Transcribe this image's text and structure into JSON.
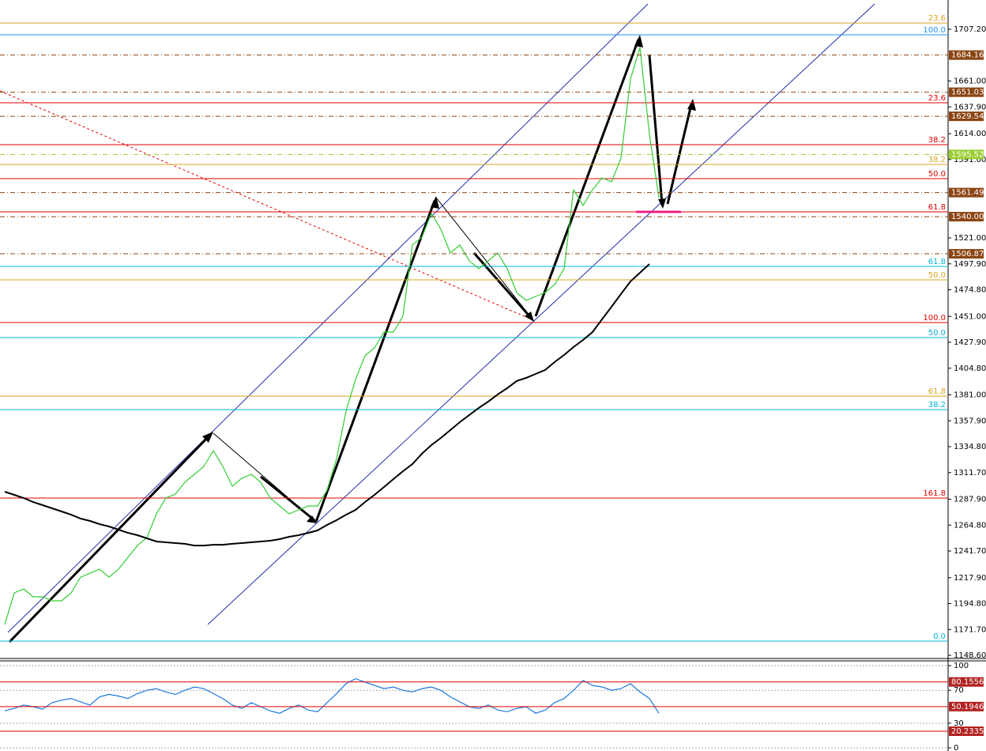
{
  "chart_data": [
    {
      "type": "line",
      "categories": [
        null,
        null,
        null,
        null,
        null,
        null,
        null,
        null,
        null,
        null,
        null,
        null,
        null,
        null,
        null,
        null,
        null,
        null,
        null,
        null,
        null,
        null,
        null,
        null,
        null,
        null,
        null,
        null,
        null,
        null,
        null,
        null,
        null,
        null,
        null,
        null,
        null,
        null,
        null,
        null,
        null,
        null,
        null,
        null,
        null,
        null,
        null,
        null,
        null,
        null,
        null,
        null,
        null,
        null,
        null,
        null,
        null,
        null,
        null,
        null,
        null,
        null,
        null,
        null,
        null,
        null,
        null,
        null,
        null,
        null,
        null,
        null,
        null,
        null,
        null,
        null,
        null,
        null,
        null,
        null,
        null,
        null,
        null,
        null,
        null,
        null,
        null,
        null,
        null,
        null,
        null,
        null,
        null,
        null,
        null,
        null,
        null,
        null,
        null,
        null
      ],
      "series": [
        {
          "color": "#32cd32",
          "values": [
            1176.1,
            1204.3,
            1207.8,
            1200.8,
            1200.8,
            1197.3,
            1197.3,
            1204.3,
            1218.4,
            1221.9,
            1225.5,
            1218.4,
            1225.5,
            1236.1,
            1246.6,
            1253.7,
            1274.9,
            1289.0,
            1292.5,
            1303.1,
            1310.1,
            1317.2,
            1331.3,
            1317.2,
            1299.5,
            1306.6,
            1310.1,
            1303.1,
            1289.0,
            1281.9,
            1274.9,
            1278.4,
            1281.9,
            1281.9,
            1296.0,
            1324.2,
            1366.5,
            1394.8,
            1415.9,
            1423.0,
            1437.1,
            1437.1,
            1451.2,
            1514.7,
            1521.7,
            1542.9,
            1528.8,
            1507.6,
            1514.7,
            1500.6,
            1493.5,
            1500.6,
            1507.6,
            1493.5,
            1472.3,
            1465.3,
            1468.8,
            1472.3,
            1479.4,
            1493.5,
            1564.0,
            1549.9,
            1564.0,
            1574.6,
            1571.1,
            1592.2,
            1662.8,
            1691.0,
            1613.4,
            1557.0,
            null,
            null,
            null,
            null,
            null,
            null,
            null,
            null,
            null,
            null,
            null,
            null,
            null,
            null,
            null,
            null,
            null,
            null,
            null,
            null,
            null,
            null,
            null,
            null,
            null,
            null,
            null,
            null,
            null,
            null
          ]
        },
        {
          "color": "#000000",
          "values": [
            1294.6,
            1291.8,
            1289.0,
            1285.4,
            1282.6,
            1279.8,
            1277.0,
            1274.1,
            1270.6,
            1268.5,
            1265.7,
            1263.6,
            1260.7,
            1257.9,
            1255.8,
            1253.0,
            1250.2,
            1249.5,
            1248.8,
            1248.1,
            1246.6,
            1246.6,
            1247.3,
            1247.3,
            1248.1,
            1248.8,
            1249.5,
            1250.2,
            1250.9,
            1252.3,
            1254.4,
            1255.8,
            1257.9,
            1260.1,
            1265.0,
            1269.2,
            1274.1,
            1278.4,
            1285.4,
            1291.8,
            1298.8,
            1305.9,
            1312.9,
            1319.3,
            1328.5,
            1336.2,
            1342.6,
            1349.6,
            1356.7,
            1363.0,
            1369.4,
            1375.0,
            1381.4,
            1387.0,
            1393.4,
            1396.2,
            1399.7,
            1403.2,
            1410.3,
            1416.6,
            1423.7,
            1430.0,
            1437.1,
            1448.4,
            1459.6,
            1471.0,
            1482.2,
            1490.0,
            1497.7,
            null,
            null,
            null,
            null,
            null,
            null,
            null,
            null,
            null,
            null,
            null,
            null,
            null,
            null,
            null,
            null,
            null,
            null,
            null,
            null,
            null,
            null,
            null,
            null,
            null,
            null,
            null,
            null,
            null,
            null,
            null
          ]
        }
      ],
      "ylim": [
        1146.5,
        1733.3
      ],
      "yticks": [
        {
          "value": 1707.2,
          "label": "1707.20"
        },
        {
          "value": 1661,
          "label": "1661.00"
        },
        {
          "value": 1637.9,
          "label": "1637.90"
        },
        {
          "value": 1614,
          "label": "1614.00"
        },
        {
          "value": 1591,
          "label": "1591.00"
        },
        {
          "value": 1521,
          "label": "1521.00"
        },
        {
          "value": 1497.9,
          "label": "1497.90"
        },
        {
          "value": 1474.8,
          "label": "1474.80"
        },
        {
          "value": 1451,
          "label": "1451.00"
        },
        {
          "value": 1427.9,
          "label": "1427.90"
        },
        {
          "value": 1404.8,
          "label": "1404.80"
        },
        {
          "value": 1381,
          "label": "1381.00"
        },
        {
          "value": 1357.9,
          "label": "1357.90"
        },
        {
          "value": 1334.8,
          "label": "1334.80"
        },
        {
          "value": 1311.7,
          "label": "1311.70"
        },
        {
          "value": 1287.9,
          "label": "1287.90"
        },
        {
          "value": 1264.8,
          "label": "1264.80"
        },
        {
          "value": 1241.7,
          "label": "1241.70"
        },
        {
          "value": 1217.9,
          "label": "1217.90"
        },
        {
          "value": 1194.8,
          "label": "1194.80"
        },
        {
          "value": 1171.7,
          "label": "1171.70"
        },
        {
          "value": 1148.6,
          "label": "1148.60"
        }
      ],
      "tag_line": "dashdot",
      "levels": [
        {
          "value": 1684.16,
          "color": "#8b4513"
        },
        {
          "value": 1651.03,
          "color": "#8b4513"
        },
        {
          "value": 1629.54,
          "color": "#8b4513"
        },
        {
          "value": 1595.52,
          "color": "#9acd32"
        },
        {
          "value": 1561.49,
          "color": "#8b4513"
        },
        {
          "value": 1540,
          "label": "1540.00",
          "color": "#8b4513"
        },
        {
          "value": 1506.87,
          "color": "#8b4513"
        }
      ],
      "fib_lines": [
        {
          "price": 1712.8,
          "text": "23.6",
          "color": "#daa520"
        },
        {
          "price": 1702.3,
          "text": "100.0",
          "color": "#1e90ff"
        },
        {
          "price": 1641.6,
          "text": "23.6",
          "color": "#e00000"
        },
        {
          "price": 1604.2,
          "text": "38.2",
          "color": "#e00000"
        },
        {
          "price": 1586.6,
          "text": "38.2",
          "color": "#daa520"
        },
        {
          "price": 1573.9,
          "text": "50.0",
          "color": "#e00000"
        },
        {
          "price": 1544.3,
          "text": "61.8",
          "color": "#e00000"
        },
        {
          "price": 1495.6,
          "text": "61.8",
          "color": "#00b4d8"
        },
        {
          "price": 1483.6,
          "text": "50.0",
          "color": "#daa520"
        },
        {
          "price": 1445.5,
          "text": "100.0",
          "color": "#e00000"
        },
        {
          "price": 1432.1,
          "text": "50.0",
          "color": "#00b4d8"
        },
        {
          "price": 1379.9,
          "text": "61.8",
          "color": "#daa520"
        },
        {
          "price": 1367.9,
          "text": "38.2",
          "color": "#00b4d8"
        },
        {
          "price": 1289.0,
          "text": "161.8",
          "color": "#e00000"
        },
        {
          "price": 1161.3,
          "text": "0.0",
          "color": "#00b4d8"
        }
      ]
    },
    {
      "type": "line",
      "categories": [
        null,
        null,
        null,
        null,
        null,
        null,
        null,
        null,
        null,
        null,
        null,
        null,
        null,
        null,
        null,
        null,
        null,
        null,
        null,
        null,
        null,
        null,
        null,
        null,
        null,
        null,
        null,
        null,
        null,
        null,
        null,
        null,
        null,
        null,
        null,
        null,
        null,
        null,
        null,
        null,
        null,
        null,
        null,
        null,
        null,
        null,
        null,
        null,
        null,
        null,
        null,
        null,
        null,
        null,
        null,
        null,
        null,
        null,
        null,
        null,
        null,
        null,
        null,
        null,
        null,
        null,
        null,
        null,
        null,
        null,
        null,
        null,
        null,
        null,
        null,
        null,
        null,
        null,
        null,
        null,
        null,
        null,
        null,
        null,
        null,
        null,
        null,
        null,
        null,
        null,
        null,
        null,
        null,
        null,
        null,
        null,
        null,
        null,
        null,
        null
      ],
      "series": [
        {
          "color": "#1e78dc",
          "values": [
            45,
            48,
            52,
            50,
            47,
            55,
            58,
            60,
            56,
            52,
            62,
            65,
            63,
            60,
            66,
            70,
            72,
            68,
            65,
            70,
            74,
            72,
            66,
            60,
            52,
            48,
            55,
            50,
            45,
            42,
            48,
            52,
            46,
            44,
            55,
            66,
            78,
            84,
            80,
            76,
            72,
            74,
            70,
            68,
            72,
            74,
            70,
            62,
            56,
            50,
            48,
            52,
            46,
            44,
            48,
            50,
            42,
            46,
            55,
            60,
            70,
            82,
            76,
            74,
            70,
            72,
            78,
            68,
            60,
            42,
            null,
            null,
            null,
            null,
            null,
            null,
            null,
            null,
            null,
            null,
            null,
            null,
            null,
            null,
            null,
            null,
            null,
            null,
            null,
            null,
            null,
            null,
            null,
            null,
            null,
            null,
            null,
            null,
            null,
            null
          ]
        }
      ],
      "ylim": [
        -3.8,
        104.8
      ],
      "yticks": [
        0,
        30,
        70,
        100
      ],
      "grid": true,
      "tag_line": "solid",
      "levels": [
        {
          "value": 80.1556,
          "color": "#b22222"
        },
        {
          "value": 50.1946,
          "color": "#b22222"
        },
        {
          "value": 20.2335,
          "color": "#b22222"
        }
      ]
    }
  ]
}
